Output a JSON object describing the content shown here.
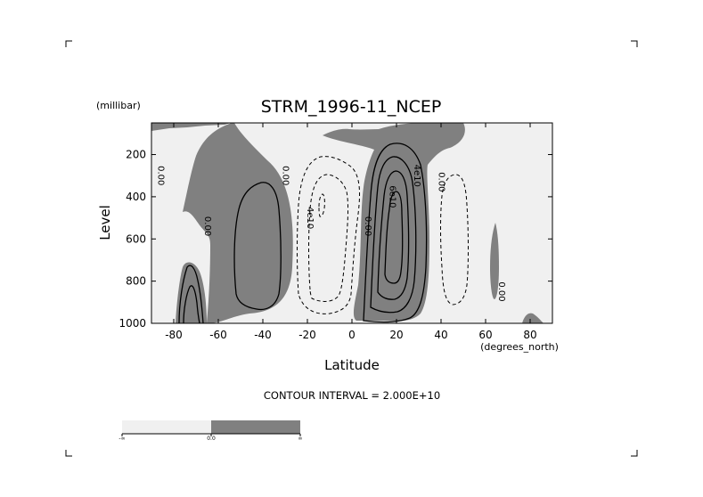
{
  "chart_data": {
    "type": "heatmap",
    "title": "STRM_1996-11_NCEP",
    "xlabel": "Latitude",
    "ylabel": "Level",
    "x_units": "(degrees_north)",
    "y_units": "(millibar)",
    "xlim": [
      -90,
      90
    ],
    "ylim": [
      1000,
      50
    ],
    "y_reversed": true,
    "x_ticks": [
      -80,
      -60,
      -40,
      -20,
      0,
      20,
      40,
      60,
      80
    ],
    "x_tick_labels": [
      "-80",
      "-60",
      "-40",
      "-20",
      "0",
      "20",
      "40",
      "60",
      "80"
    ],
    "y_ticks": [
      200,
      400,
      600,
      800,
      1000
    ],
    "y_tick_labels": [
      "200",
      "400",
      "600",
      "800",
      "1000"
    ],
    "contour_interval_text": "CONTOUR INTERVAL = 2.000E+10",
    "contour_interval": 20000000000,
    "fill_levels": [
      {
        "range": "below 0.0",
        "color": "#f0f0f0"
      },
      {
        "range": "above 0.0",
        "color": "#808080"
      }
    ],
    "colorbar_labels": [
      "-∞",
      "0.0",
      "∞"
    ],
    "contour_labels": [
      {
        "text": "0.00",
        "lat": -87,
        "lev": 300
      },
      {
        "text": "0.00",
        "lat": -66,
        "lev": 540
      },
      {
        "text": "0.00",
        "lat": -31,
        "lev": 300
      },
      {
        "text": "4e10",
        "lat": -20,
        "lev": 500
      },
      {
        "text": "0.00",
        "lat": 6,
        "lev": 540
      },
      {
        "text": "6e10",
        "lat": 17,
        "lev": 400
      },
      {
        "text": "4e10",
        "lat": 28,
        "lev": 300
      },
      {
        "text": "0.00",
        "lat": 39,
        "lev": 330
      },
      {
        "text": "0.00",
        "lat": 66,
        "lev": 850
      }
    ],
    "series": [
      {
        "sign": "negative",
        "lat_center": -80,
        "lev_center": 450,
        "level": -20000000000.0
      },
      {
        "sign": "positive",
        "lat_center": -40,
        "lev_center": 500,
        "level": 20000000000.0
      },
      {
        "sign": "negative",
        "lat_center": -12,
        "lev_center": 450,
        "level": -40000000000.0
      },
      {
        "sign": "positive",
        "lat_center": 20,
        "lev_center": 550,
        "level": 60000000000.0
      },
      {
        "sign": "negative",
        "lat_center": 50,
        "lev_center": 550,
        "level": -20000000000.0
      },
      {
        "sign": "positive",
        "lat_center": 65,
        "lev_center": 700,
        "level": 10000000000.0
      }
    ]
  }
}
